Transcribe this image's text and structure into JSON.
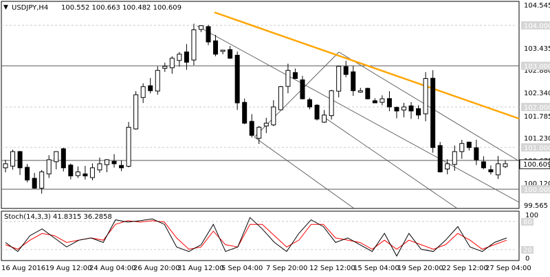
{
  "header": {
    "symbol": "USDJPY,H4",
    "ohlc": "100.552 100.663 100.482 100.609"
  },
  "stoch_label": "Stoch(14,3,3) 41.8315 36.2858",
  "price_axis": {
    "ticks": [
      "104.545",
      "103.990",
      "103.435",
      "102.880",
      "102.340",
      "101.785",
      "101.230",
      "100.675",
      "100.120",
      "99.565"
    ]
  },
  "time_axis": {
    "ticks": [
      "16 Aug 2016",
      "19 Aug 12:00",
      "24 Aug 04:00",
      "26 Aug 20:00",
      "31 Aug 12:00",
      "5 Sep 04:00",
      "7 Sep 20:00",
      "12 Sep 12:00",
      "15 Sep 04:00",
      "19 Sep 20:00",
      "22 Sep 12:00",
      "27 Sep 04:00"
    ]
  },
  "levels": {
    "l104": "104.000",
    "l103": "103.000",
    "l102": "102.000",
    "l101": "101.000",
    "current": "100.609",
    "l100": "100.000"
  },
  "stoch_axis": {
    "ticks": [
      "100",
      "80",
      "20",
      "0"
    ]
  },
  "colors": {
    "trendline": "#ffa500",
    "signal": "#ff0000",
    "main": "#000000",
    "grid": "#c8c8c8",
    "label_bg": "#d6d6d6"
  },
  "chart_data": {
    "type": "candlestick",
    "symbol": "USDJPY",
    "timeframe": "H4",
    "ylim": [
      99.5,
      104.6
    ],
    "candles_close_approx": [
      100.6,
      100.9,
      100.5,
      100.2,
      100.0,
      100.4,
      100.7,
      100.9,
      100.5,
      100.3,
      100.4,
      100.3,
      100.5,
      100.6,
      100.7,
      100.6,
      100.5,
      101.5,
      102.3,
      102.5,
      102.4,
      102.9,
      103.0,
      103.2,
      103.3,
      103.1,
      103.9,
      104.0,
      103.6,
      103.3,
      103.4,
      103.2,
      102.1,
      101.6,
      101.3,
      101.5,
      101.6,
      102.0,
      102.5,
      102.9,
      102.7,
      102.2,
      102.0,
      101.7,
      101.8,
      102.4,
      103.0,
      102.8,
      102.4,
      102.4,
      102.2,
      102.1,
      102.2,
      102.0,
      101.9,
      102.0,
      101.9,
      101.8,
      102.7,
      101.0,
      100.4,
      100.6,
      100.9,
      101.1,
      101.0,
      100.7,
      100.5,
      100.4,
      100.6,
      100.6
    ],
    "stoch_main_approx": [
      40,
      20,
      55,
      70,
      50,
      30,
      45,
      50,
      40,
      90,
      85,
      88,
      92,
      80,
      30,
      20,
      35,
      80,
      20,
      30,
      95,
      70,
      40,
      20,
      60,
      90,
      75,
      40,
      50,
      35,
      20,
      60,
      10,
      60,
      25,
      20,
      45,
      75,
      30,
      20,
      40,
      50
    ],
    "stoch_signal_approx": [
      35,
      25,
      45,
      60,
      55,
      40,
      45,
      50,
      45,
      80,
      88,
      85,
      88,
      85,
      50,
      25,
      30,
      65,
      35,
      30,
      80,
      80,
      55,
      30,
      45,
      80,
      80,
      50,
      45,
      40,
      25,
      45,
      25,
      45,
      35,
      25,
      35,
      60,
      45,
      25,
      35,
      45
    ]
  }
}
